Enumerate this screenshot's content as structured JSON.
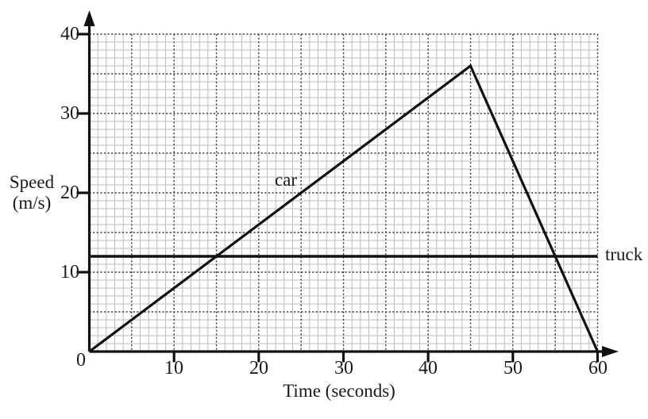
{
  "figure": {
    "background": "#ffffff",
    "ink_color": "#111111",
    "minor_grid_color": "#bcbcbc",
    "major_grid_color": "#3d3d3d",
    "text_color": "#1a1a1a"
  },
  "chart_data": {
    "type": "line",
    "title": "",
    "xlabel": "Time (seconds)",
    "ylabel": "Speed (m/s)",
    "ylabel_lines": [
      "Speed",
      "(m/s)"
    ],
    "xlim": [
      0,
      60
    ],
    "ylim": [
      0,
      40
    ],
    "x_tick_step": 10,
    "y_tick_step": 10,
    "minor_grid_step": 1,
    "major_grid_step": 5,
    "grid": "minor solid light-gray every 1 unit; major dotted dark every 5 units",
    "legend_position": "inline labels next to lines",
    "origin_label": "0",
    "x_tick_labels": [
      "10",
      "20",
      "30",
      "40",
      "50",
      "60"
    ],
    "y_tick_labels": [
      "10",
      "20",
      "30",
      "40"
    ],
    "series": [
      {
        "name": "car",
        "label": "car",
        "points": [
          [
            0,
            0
          ],
          [
            45,
            36
          ],
          [
            60,
            0
          ]
        ]
      },
      {
        "name": "truck",
        "label": "truck",
        "points": [
          [
            0,
            12
          ],
          [
            60,
            12
          ]
        ]
      }
    ],
    "annotations": [
      {
        "text": "car",
        "x": 23.2,
        "y": 21.5,
        "placement": "above ascending car line"
      },
      {
        "text": "truck",
        "x": 61,
        "y": 12,
        "placement": "right of grid, on truck line"
      }
    ]
  }
}
